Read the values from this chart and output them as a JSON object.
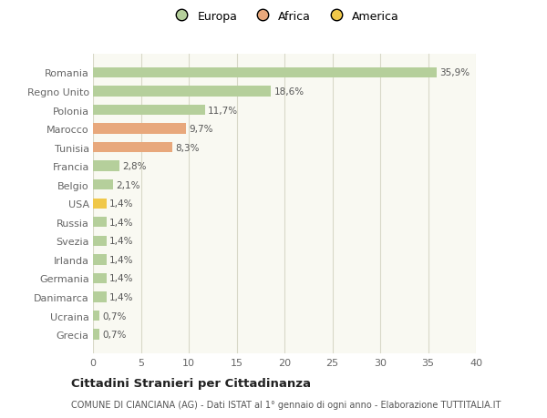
{
  "countries": [
    "Romania",
    "Regno Unito",
    "Polonia",
    "Marocco",
    "Tunisia",
    "Francia",
    "Belgio",
    "USA",
    "Russia",
    "Svezia",
    "Irlanda",
    "Germania",
    "Danimarca",
    "Ucraina",
    "Grecia"
  ],
  "values": [
    35.9,
    18.6,
    11.7,
    9.7,
    8.3,
    2.8,
    2.1,
    1.4,
    1.4,
    1.4,
    1.4,
    1.4,
    1.4,
    0.7,
    0.7
  ],
  "labels": [
    "35,9%",
    "18,6%",
    "11,7%",
    "9,7%",
    "8,3%",
    "2,8%",
    "2,1%",
    "1,4%",
    "1,4%",
    "1,4%",
    "1,4%",
    "1,4%",
    "1,4%",
    "0,7%",
    "0,7%"
  ],
  "colors": [
    "#b5cf9b",
    "#b5cf9b",
    "#b5cf9b",
    "#e8a87c",
    "#e8a87c",
    "#b5cf9b",
    "#b5cf9b",
    "#f0c84a",
    "#b5cf9b",
    "#b5cf9b",
    "#b5cf9b",
    "#b5cf9b",
    "#b5cf9b",
    "#b5cf9b",
    "#b5cf9b"
  ],
  "legend": [
    {
      "label": "Europa",
      "color": "#b5cf9b"
    },
    {
      "label": "Africa",
      "color": "#e8a87c"
    },
    {
      "label": "America",
      "color": "#f0c84a"
    }
  ],
  "xlim": [
    0,
    40
  ],
  "xticks": [
    0,
    5,
    10,
    15,
    20,
    25,
    30,
    35,
    40
  ],
  "title": "Cittadini Stranieri per Cittadinanza",
  "subtitle": "COMUNE DI CIANCIANA (AG) - Dati ISTAT al 1° gennaio di ogni anno - Elaborazione TUTTITALIA.IT",
  "bg_color": "#ffffff",
  "plot_bg_color": "#f9f9f2",
  "grid_color": "#d8d8c8",
  "label_color": "#666666",
  "text_color": "#555555"
}
